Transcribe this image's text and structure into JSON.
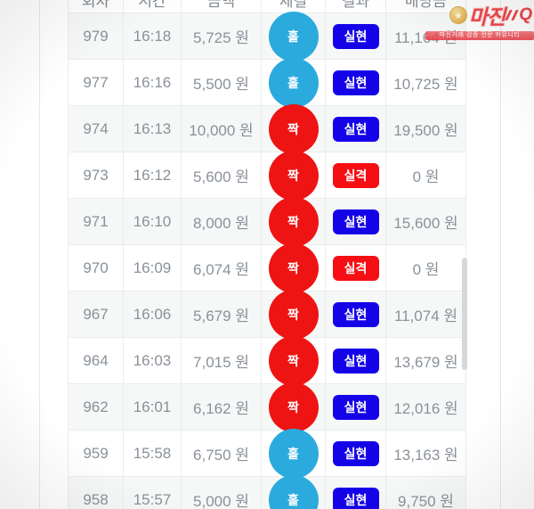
{
  "colors": {
    "pick-odd": "#2baade",
    "pick-even": "#ee1413",
    "result-win": "#1503e8",
    "result-lose": "#f50f14"
  },
  "table": {
    "headers": [
      "회차",
      "시간",
      "금액",
      "체결",
      "결과",
      "배당금"
    ],
    "rows": [
      {
        "round": "979",
        "time": "16:18",
        "amount": "5,725 원",
        "pick": "홀",
        "pick_type": "odd",
        "result": "실현",
        "result_type": "win",
        "payout": "11,164 원"
      },
      {
        "round": "977",
        "time": "16:16",
        "amount": "5,500 원",
        "pick": "홀",
        "pick_type": "odd",
        "result": "실현",
        "result_type": "win",
        "payout": "10,725 원"
      },
      {
        "round": "974",
        "time": "16:13",
        "amount": "10,000 원",
        "pick": "짝",
        "pick_type": "even",
        "result": "실현",
        "result_type": "win",
        "payout": "19,500 원"
      },
      {
        "round": "973",
        "time": "16:12",
        "amount": "5,600 원",
        "pick": "짝",
        "pick_type": "even",
        "result": "실격",
        "result_type": "lose",
        "payout": "0 원"
      },
      {
        "round": "971",
        "time": "16:10",
        "amount": "8,000 원",
        "pick": "짝",
        "pick_type": "even",
        "result": "실현",
        "result_type": "win",
        "payout": "15,600 원"
      },
      {
        "round": "970",
        "time": "16:09",
        "amount": "6,074 원",
        "pick": "짝",
        "pick_type": "even",
        "result": "실격",
        "result_type": "lose",
        "payout": "0 원"
      },
      {
        "round": "967",
        "time": "16:06",
        "amount": "5,679 원",
        "pick": "짝",
        "pick_type": "even",
        "result": "실현",
        "result_type": "win",
        "payout": "11,074 원"
      },
      {
        "round": "964",
        "time": "16:03",
        "amount": "7,015 원",
        "pick": "짝",
        "pick_type": "even",
        "result": "실현",
        "result_type": "win",
        "payout": "13,679 원"
      },
      {
        "round": "962",
        "time": "16:01",
        "amount": "6,162 원",
        "pick": "짝",
        "pick_type": "even",
        "result": "실현",
        "result_type": "win",
        "payout": "12,016 원"
      },
      {
        "round": "959",
        "time": "15:58",
        "amount": "6,750 원",
        "pick": "홀",
        "pick_type": "odd",
        "result": "실현",
        "result_type": "win",
        "payout": "13,163 원"
      },
      {
        "round": "958",
        "time": "15:57",
        "amount": "5,000 원",
        "pick": "홀",
        "pick_type": "odd",
        "result": "실현",
        "result_type": "win",
        "payout": "9,750 원"
      }
    ]
  },
  "watermark": {
    "emblem": "★",
    "title": "마진",
    "suffix": "Q",
    "tagline": "마진거래 검증 전문 커뮤니티"
  }
}
